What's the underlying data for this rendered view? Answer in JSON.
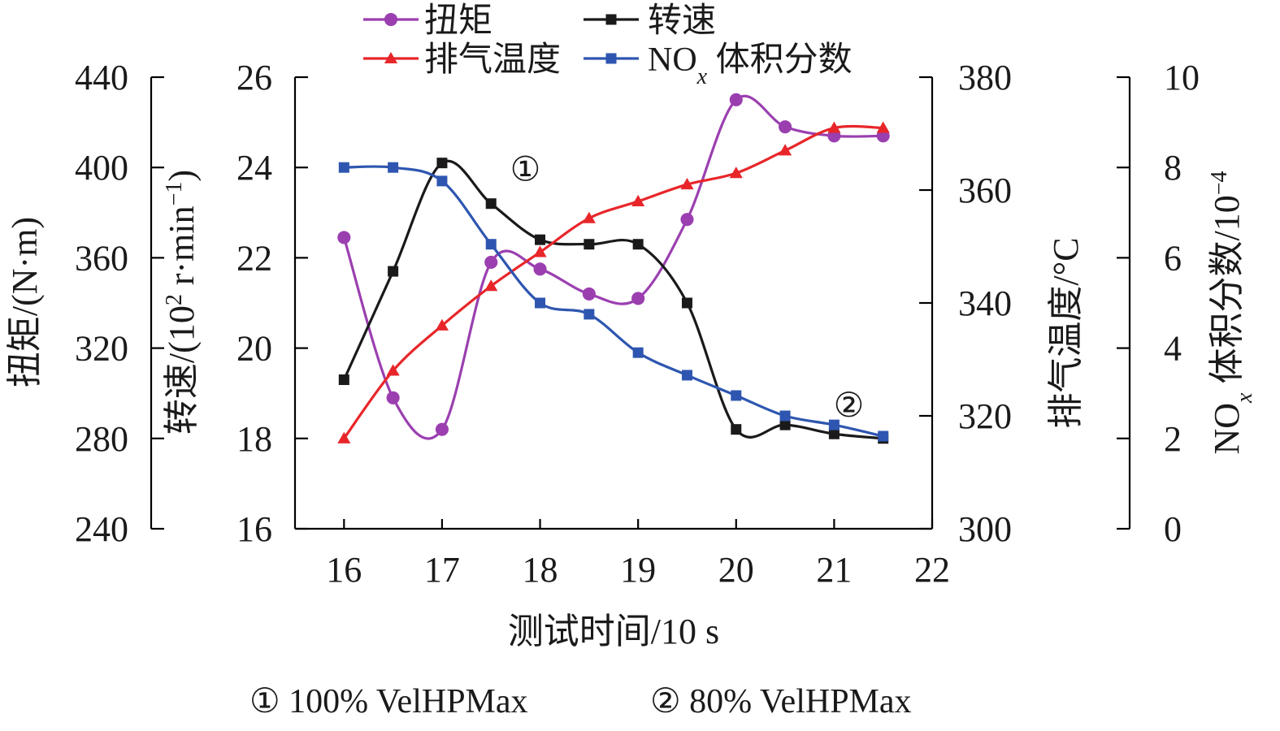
{
  "chart_data": {
    "type": "line",
    "xlabel": "测试时间/10 s",
    "xlim": [
      15.5,
      22
    ],
    "xticks": [
      16,
      17,
      18,
      19,
      20,
      21,
      22
    ],
    "axes": {
      "torque": {
        "label": "扭矩/(N·m)",
        "ylim": [
          240,
          440
        ],
        "ticks": [
          240,
          280,
          320,
          360,
          400,
          440
        ]
      },
      "speed": {
        "label_main": "转速/(10",
        "label_sup": "2",
        "label_mid": " r·min",
        "label_sup2": "−1",
        "label_end": ")",
        "ylim": [
          16,
          26
        ],
        "ticks": [
          16,
          18,
          20,
          22,
          24,
          26
        ]
      },
      "temp": {
        "label": "排气温度/°C",
        "ylim": [
          300,
          380
        ],
        "ticks": [
          300,
          320,
          340,
          360,
          380
        ]
      },
      "nox": {
        "label_main": "NO",
        "label_sub": "x",
        "label_end": " 体积分数/10",
        "label_sup": "−4",
        "ylim": [
          0,
          10
        ],
        "ticks": [
          0,
          2,
          4,
          6,
          8,
          10
        ]
      }
    },
    "series": [
      {
        "name": "扭矩",
        "axis": "torque",
        "color": "#9b3fb0",
        "marker": "circle",
        "x": [
          16,
          16.5,
          17,
          17.5,
          18,
          18.5,
          19,
          19.5,
          20,
          20.5,
          21,
          21.5
        ],
        "values": [
          369,
          298,
          284,
          358,
          355,
          344,
          342,
          377,
          430,
          418,
          414,
          414
        ]
      },
      {
        "name": "转速",
        "axis": "speed",
        "color": "#1a1a1a",
        "marker": "square",
        "x": [
          16,
          16.5,
          17,
          17.5,
          18,
          18.5,
          19,
          19.5,
          20,
          20.5,
          21,
          21.5
        ],
        "values": [
          19.3,
          21.7,
          24.1,
          23.2,
          22.4,
          22.3,
          22.3,
          21.0,
          18.2,
          18.3,
          18.1,
          18.0
        ]
      },
      {
        "name": "排气温度",
        "axis": "temp",
        "color": "#e8262a",
        "marker": "triangle",
        "x": [
          16,
          16.5,
          17,
          17.5,
          18,
          18.5,
          19,
          19.5,
          20,
          20.5,
          21,
          21.5
        ],
        "values": [
          316,
          328,
          336,
          343,
          349,
          355,
          358,
          361,
          363,
          367,
          371,
          371
        ]
      },
      {
        "name": "NOₓ体积分数",
        "axis": "nox",
        "color": "#2e56b0",
        "marker": "square",
        "x": [
          16,
          16.5,
          17,
          17.5,
          18,
          18.5,
          19,
          19.5,
          20,
          20.5,
          21,
          21.5
        ],
        "values": [
          8.0,
          8.0,
          7.7,
          6.3,
          5.0,
          4.75,
          3.9,
          3.4,
          2.95,
          2.5,
          2.3,
          2.05
        ]
      }
    ],
    "legend": [
      {
        "label": "扭矩",
        "series": 0
      },
      {
        "label": "转速",
        "series": 1
      },
      {
        "label": "排气温度",
        "series": 2
      },
      {
        "label_main": "NO",
        "label_sub": "x",
        "label_end": " 体积分数",
        "series": 3
      }
    ],
    "annotations": [
      {
        "text": "①",
        "x": 17.85,
        "speed": 23.98
      },
      {
        "text": "②",
        "x": 21.15,
        "speed": 18.75
      }
    ],
    "footnote": {
      "item1": "① 100% VelHPMax",
      "item2": "② 80% VelHPMax"
    }
  }
}
